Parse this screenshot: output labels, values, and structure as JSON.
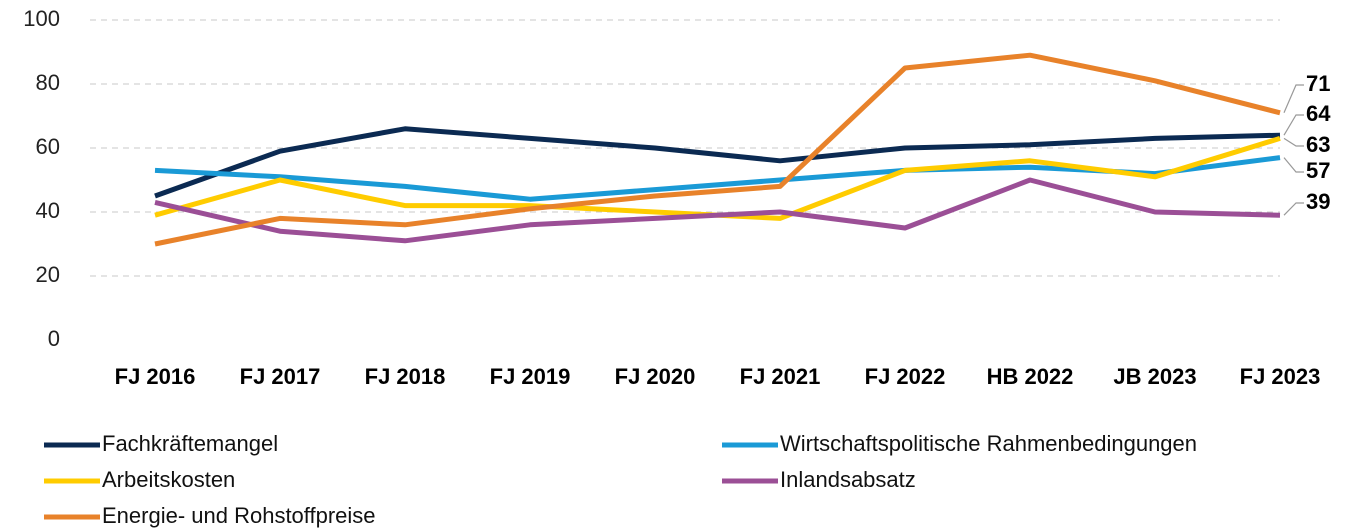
{
  "chart_data": {
    "type": "line",
    "categories": [
      "FJ 2016",
      "FJ 2017",
      "FJ 2018",
      "FJ 2019",
      "FJ 2020",
      "FJ 2021",
      "FJ 2022",
      "HB 2022",
      "JB 2023",
      "FJ 2023"
    ],
    "series": [
      {
        "name": "Fachkräftemangel",
        "color": "#0b2a52",
        "values": [
          45,
          59,
          66,
          63,
          60,
          56,
          60,
          61,
          63,
          64
        ]
      },
      {
        "name": "Wirtschaftspolitische Rahmenbedingungen",
        "color": "#1a9ad6",
        "values": [
          53,
          51,
          48,
          44,
          47,
          50,
          53,
          54,
          52,
          57
        ]
      },
      {
        "name": "Arbeitskosten",
        "color": "#ffcc00",
        "values": [
          39,
          50,
          42,
          42,
          40,
          38,
          53,
          56,
          51,
          63
        ]
      },
      {
        "name": "Inlandsabsatz",
        "color": "#9b4f96",
        "values": [
          43,
          34,
          31,
          36,
          38,
          40,
          35,
          50,
          40,
          39
        ]
      },
      {
        "name": "Energie- und Rohstoffpreise",
        "color": "#e8822a",
        "values": [
          30,
          38,
          36,
          41,
          45,
          48,
          85,
          89,
          81,
          71
        ]
      }
    ],
    "ylim": [
      0,
      100
    ],
    "yticks": [
      0,
      20,
      40,
      60,
      80,
      100
    ],
    "grid": true
  }
}
